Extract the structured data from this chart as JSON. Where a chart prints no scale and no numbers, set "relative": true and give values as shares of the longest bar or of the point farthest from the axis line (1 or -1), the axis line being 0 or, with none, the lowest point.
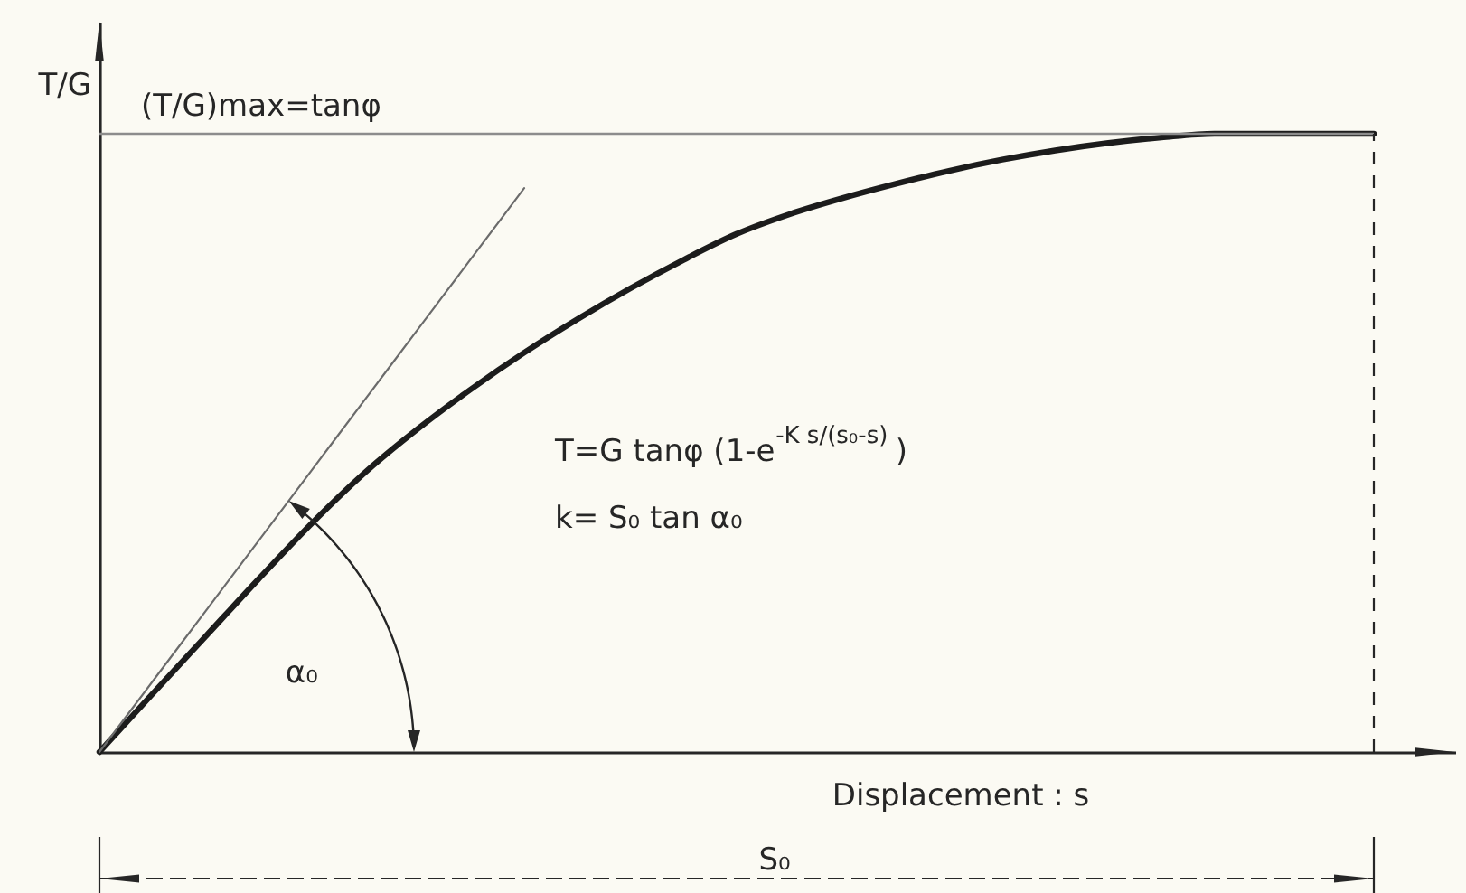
{
  "chart_data": {
    "type": "line",
    "relative": true,
    "xlabel": "Displacement : s",
    "ylabel": "T/G",
    "categories": [
      null,
      null,
      null,
      null,
      null,
      null,
      null,
      null,
      null,
      null,
      null,
      null,
      null,
      null,
      null,
      null,
      null,
      null,
      null,
      null,
      null,
      null,
      null,
      null,
      null
    ],
    "series": [
      {
        "color": "#1c1c1c",
        "values": [
          0,
          0.094,
          0.187,
          0.28,
          0.37,
          0.452,
          0.523,
          0.587,
          0.646,
          0.7,
          0.75,
          0.796,
          0.838,
          0.87,
          0.896,
          0.919,
          0.94,
          0.958,
          0.973,
          0.985,
          0.994,
          1,
          1,
          1,
          1
        ]
      },
      {
        "color": "#6b6b6b",
        "values": [
          0,
          0.114,
          0.228,
          0.342,
          0.456,
          0.57,
          0.684,
          0.798,
          0.912,
          null,
          null,
          null,
          null,
          null,
          null,
          null,
          null,
          null,
          null,
          null,
          null,
          null,
          null,
          null,
          null
        ]
      }
    ],
    "ref_lines": [
      {
        "axis": "y",
        "value": 1,
        "label": "(T/G)max=tanφ",
        "color": "#8c8c8c"
      }
    ],
    "annotations": [
      "T=G tanφ (1-e$^{-K s/(s₀-s)}$)",
      "k= S₀ tan α₀",
      "α₀",
      "S₀"
    ]
  }
}
